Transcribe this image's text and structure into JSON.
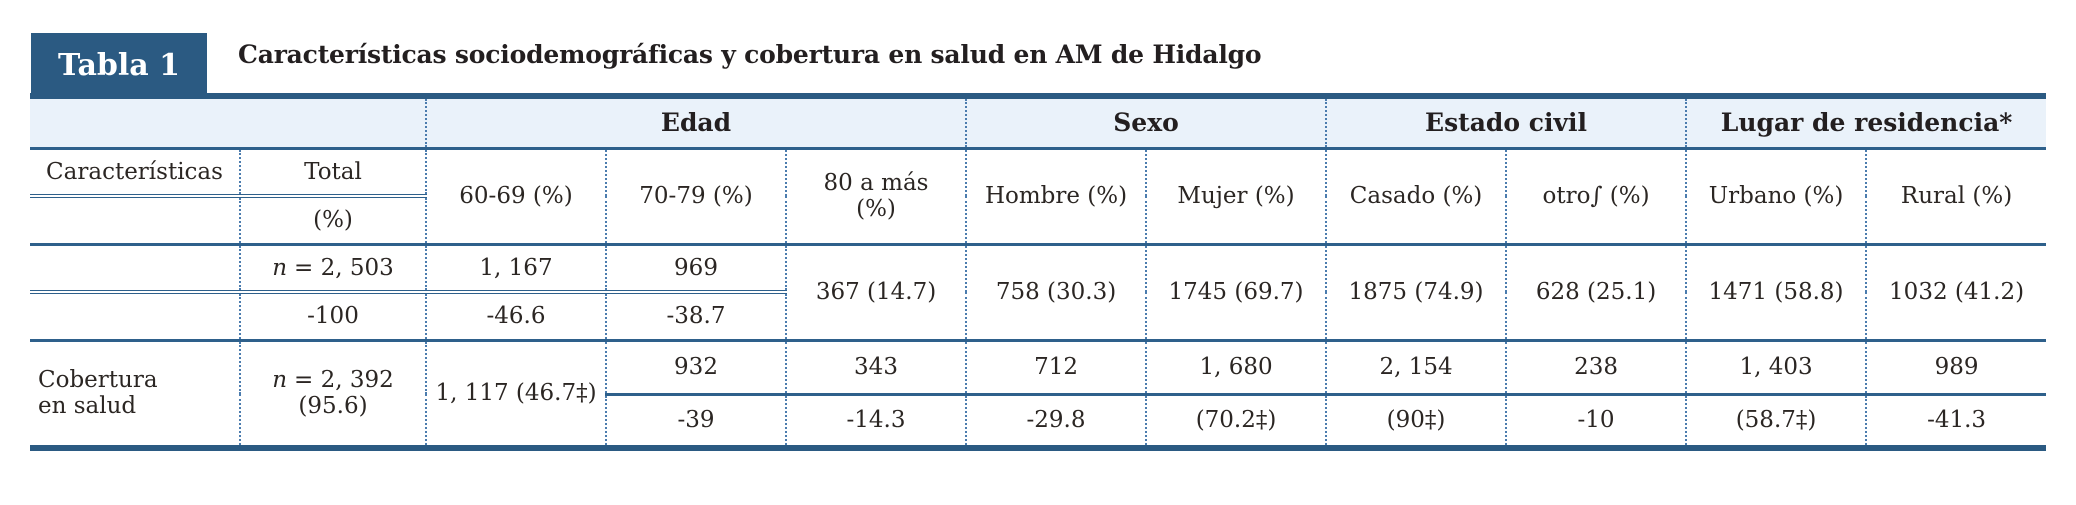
{
  "colors": {
    "navy": "#2b5a82",
    "band_background": "#eaf2fa",
    "rule_line": "#2e608b",
    "dotted_line": "#4b7cae",
    "text": "#2b2623"
  },
  "header": {
    "table_label": "Tabla 1",
    "title": "Características sociodemográficas y cobertura en salud en AM de Hidalgo"
  },
  "groups": [
    "Edad",
    "Sexo",
    "Estado civil",
    "Lugar de residencia*"
  ],
  "columns": {
    "caracteristicas": "Características",
    "total_line1": "Total",
    "total_line2": "(%)",
    "age_60_69": "60-69 (%)",
    "age_70_79": "70-79 (%)",
    "age_80_plus": "80 a más (%)",
    "hombre": "Hombre (%)",
    "mujer": "Mujer (%)",
    "casado": "Casado (%)",
    "otro": "otro∫ (%)",
    "urbano": "Urbano (%)",
    "rural": "Rural (%)"
  },
  "row1": {
    "label": "",
    "total_top": {
      "italic": "n",
      "text": "= 2, 503"
    },
    "total_bottom": "-100",
    "age_60_69_top": "1, 167",
    "age_60_69_bottom": "-46.6",
    "age_70_79_top": "969",
    "age_70_79_bottom": "-38.7",
    "age_80_plus": "367 (14.7)",
    "hombre": "758 (30.3)",
    "mujer": "1745 (69.7)",
    "casado": "1875 (74.9)",
    "otro": "628 (25.1)",
    "urbano": "1471 (58.8)",
    "rural": "1032 (41.2)"
  },
  "row2": {
    "label": "Cobertura en salud",
    "total": {
      "italic": "n",
      "text": "= 2, 392",
      "line2": "(95.6)"
    },
    "age_60_69": "1, 117 (46.7‡)",
    "age_70_79_top": "932",
    "age_70_79_bottom": "-39",
    "age_80_plus_top": "343",
    "age_80_plus_bottom": "-14.3",
    "hombre_top": "712",
    "hombre_bottom": "-29.8",
    "mujer_top": "1, 680",
    "mujer_bottom": "(70.2‡)",
    "casado_top": "2, 154",
    "casado_bottom": "(90‡)",
    "otro_top": "238",
    "otro_bottom": "-10",
    "urbano_top": "1, 403",
    "urbano_bottom": "(58.7‡)",
    "rural_top": "989",
    "rural_bottom": "-41.3"
  }
}
